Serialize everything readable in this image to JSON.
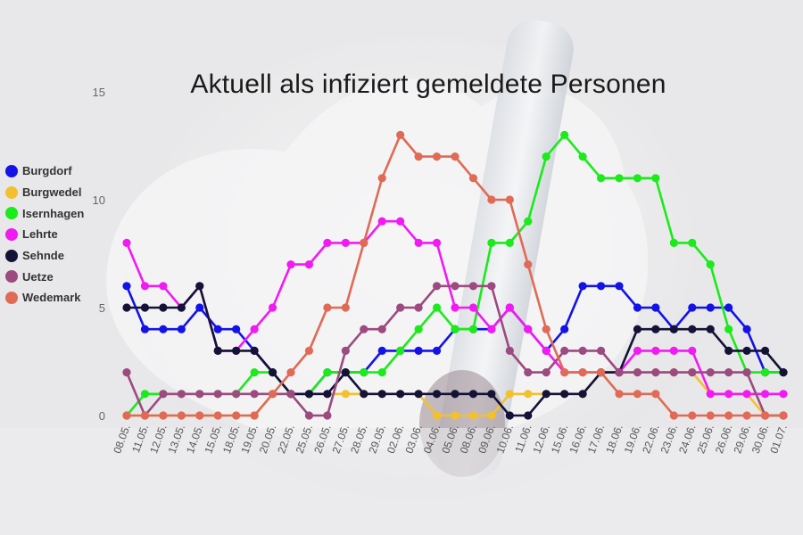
{
  "chart_data": {
    "type": "line",
    "title": "Aktuell als infiziert gemeldete Personen",
    "xlabel": "",
    "ylabel": "",
    "ylim": [
      0,
      17.5
    ],
    "yticks": [
      0,
      5,
      10,
      15
    ],
    "legend_position": "left",
    "categories": [
      "08.05.",
      "11.05.",
      "12.05.",
      "13.05.",
      "14.05.",
      "15.05.",
      "18.05.",
      "19.05.",
      "20.05.",
      "22.05.",
      "25.05.",
      "26.05.",
      "27.05.",
      "28.05.",
      "29.05.",
      "02.06.",
      "03.06.",
      "04.06.",
      "05.06.",
      "08.06.",
      "09.06.",
      "10.06.",
      "11.06.",
      "12.06.",
      "15.06.",
      "16.06.",
      "17.06.",
      "18.06.",
      "19.06.",
      "22.06.",
      "23.06.",
      "24.06.",
      "25.06.",
      "26.06.",
      "29.06.",
      "30.06.",
      "01.07."
    ],
    "series": [
      {
        "name": "Burgdorf",
        "color": "#1313e8",
        "values": [
          6,
          4,
          4,
          4,
          5,
          4,
          4,
          3,
          2,
          1,
          1,
          2,
          2,
          2,
          3,
          3,
          3,
          3,
          4,
          4,
          4,
          5,
          4,
          3,
          4,
          6,
          6,
          6,
          5,
          5,
          4,
          5,
          5,
          5,
          4,
          2,
          2
        ]
      },
      {
        "name": "Burgwedel",
        "color": "#f3c12e",
        "values": [
          0,
          0,
          0,
          0,
          0,
          0,
          0,
          0,
          1,
          1,
          1,
          1,
          1,
          1,
          1,
          1,
          1,
          0,
          0,
          0,
          0,
          1,
          1,
          1,
          1,
          1,
          2,
          2,
          2,
          2,
          2,
          2,
          1,
          1,
          1,
          0,
          0
        ]
      },
      {
        "name": "Isernhagen",
        "color": "#1bea1b",
        "values": [
          0,
          1,
          1,
          1,
          1,
          1,
          1,
          2,
          2,
          1,
          1,
          2,
          2,
          2,
          2,
          3,
          4,
          5,
          4,
          4,
          8,
          8,
          9,
          12,
          13,
          12,
          11,
          11,
          11,
          11,
          8,
          8,
          7,
          4,
          2,
          2,
          2
        ]
      },
      {
        "name": "Lehrte",
        "color": "#f21af2",
        "values": [
          8,
          6,
          6,
          5,
          6,
          3,
          3,
          4,
          5,
          7,
          7,
          8,
          8,
          8,
          9,
          9,
          8,
          8,
          5,
          5,
          4,
          5,
          4,
          3,
          2,
          2,
          2,
          2,
          3,
          3,
          3,
          3,
          1,
          1,
          1,
          1,
          1
        ]
      },
      {
        "name": "Sehnde",
        "color": "#141236",
        "values": [
          5,
          5,
          5,
          5,
          6,
          3,
          3,
          3,
          2,
          1,
          1,
          1,
          2,
          1,
          1,
          1,
          1,
          1,
          1,
          1,
          1,
          0,
          0,
          1,
          1,
          1,
          2,
          2,
          4,
          4,
          4,
          4,
          4,
          3,
          3,
          3,
          2
        ]
      },
      {
        "name": "Uetze",
        "color": "#9c4a80",
        "values": [
          2,
          0,
          1,
          1,
          1,
          1,
          1,
          1,
          1,
          1,
          0,
          0,
          3,
          4,
          4,
          5,
          5,
          6,
          6,
          6,
          6,
          3,
          2,
          2,
          3,
          3,
          3,
          2,
          2,
          2,
          2,
          2,
          2,
          2,
          2,
          0,
          0
        ]
      },
      {
        "name": "Wedemark",
        "color": "#e06a55",
        "values": [
          0,
          0,
          0,
          0,
          0,
          0,
          0,
          0,
          1,
          2,
          3,
          5,
          5,
          8,
          11,
          13,
          12,
          12,
          12,
          11,
          10,
          10,
          7,
          4,
          2,
          2,
          2,
          1,
          1,
          1,
          0,
          0,
          0,
          0,
          0,
          0,
          0
        ]
      }
    ]
  }
}
